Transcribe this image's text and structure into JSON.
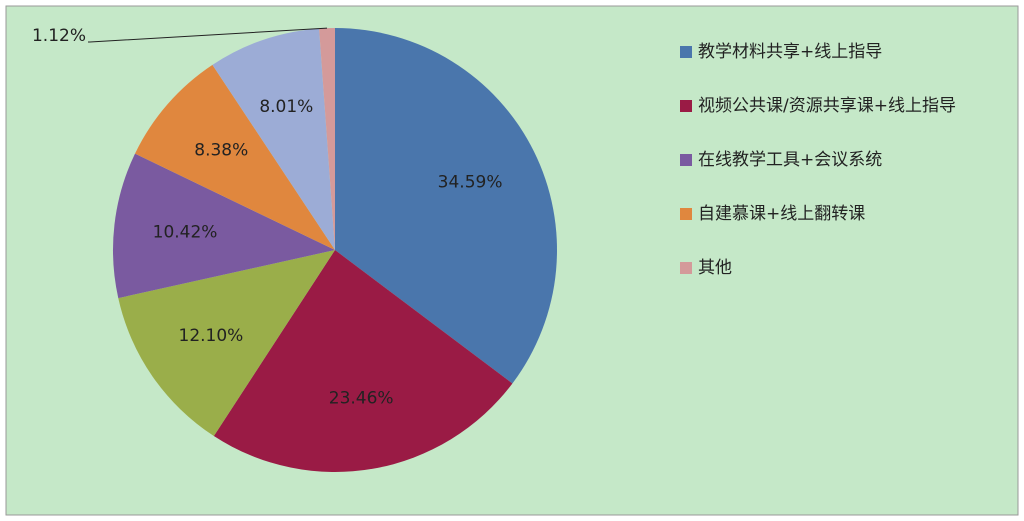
{
  "chart_data": {
    "type": "pie",
    "categories": [
      "教学材料共享+线上指导",
      "视频公共课/资源共享课+线上指导",
      null,
      "在线教学工具+会议系统",
      "自建慕课+线上翻转课",
      null,
      "其他"
    ],
    "values": [
      34.59,
      23.46,
      12.1,
      10.42,
      8.38,
      8.01,
      1.12
    ],
    "value_labels": [
      "34.59%",
      "23.46%",
      "12.10%",
      "10.42%",
      "8.38%",
      "8.01%",
      "1.12%"
    ],
    "colors": [
      "#4a76ac",
      "#9a1b45",
      "#9aae4a",
      "#7a5aa0",
      "#e0873e",
      "#9cacd6",
      "#d49a9a"
    ]
  }
}
